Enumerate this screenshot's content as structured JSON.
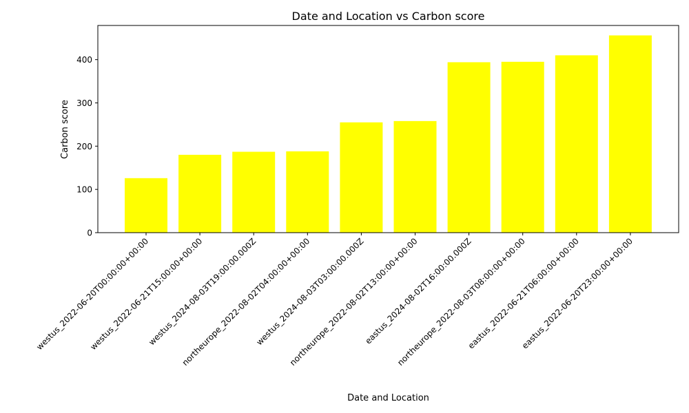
{
  "chart_data": {
    "type": "bar",
    "title": "Date and Location vs Carbon score",
    "xlabel": "Date and Location",
    "ylabel": "Carbon score",
    "categories": [
      "westus_2022-06-20T00:00:00+00:00",
      "westus_2022-06-21T15:00:00+00:00",
      "westus_2024-08-03T19:00:00.000Z",
      "northeurope_2022-08-02T04:00:00+00:00",
      "westus_2024-08-03T03:00:00.000Z",
      "northeurope_2022-08-02T13:00:00+00:00",
      "eastus_2024-08-02T16:00:00.000Z",
      "northeurope_2022-08-03T08:00:00+00:00",
      "eastus_2022-06-21T06:00:00+00:00",
      "eastus_2022-06-20T23:00:00+00:00"
    ],
    "values": [
      126,
      180,
      187,
      188,
      255,
      258,
      394,
      395,
      410,
      456
    ],
    "ylim": [
      0,
      479
    ],
    "yticks": [
      0,
      100,
      200,
      300,
      400
    ],
    "bar_color": "#ffff00",
    "grid": false,
    "legend": "none"
  }
}
